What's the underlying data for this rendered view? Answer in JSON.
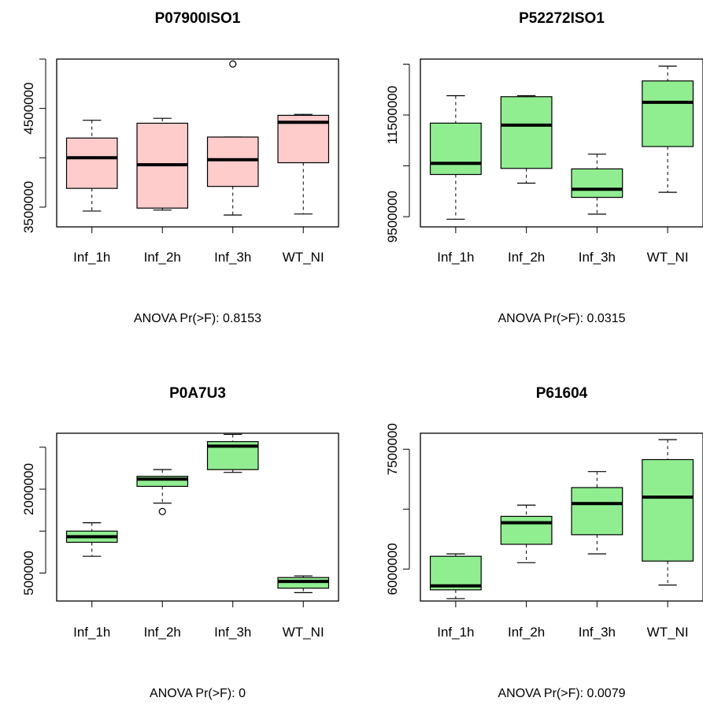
{
  "chart_data": [
    {
      "type": "box",
      "title": "P07900ISO1",
      "categories": [
        "Inf_1h",
        "Inf_2h",
        "Inf_3h",
        "WT_NI"
      ],
      "yticks": [
        3500000,
        4500000
      ],
      "ylim": [
        3300000,
        5000000
      ],
      "fill": "#ffcccc",
      "boxes": [
        {
          "min": 3460000,
          "q1": 3690000,
          "median": 4000000,
          "q3": 4200000,
          "max": 4380000
        },
        {
          "min": 3470000,
          "q1": 3490000,
          "median": 3930000,
          "q3": 4350000,
          "max": 4400000
        },
        {
          "min": 3420000,
          "q1": 3710000,
          "median": 3980000,
          "q3": 4210000,
          "max": 4210000
        },
        {
          "min": 3430000,
          "q1": 3950000,
          "median": 4360000,
          "q3": 4430000,
          "max": 4440000
        }
      ],
      "outliers": [
        {
          "category": "Inf_3h",
          "value": 4950000
        }
      ],
      "anova": "ANOVA Pr(>F): 0.8153"
    },
    {
      "type": "box",
      "title": "P52272ISO1",
      "categories": [
        "Inf_1h",
        "Inf_2h",
        "Inf_3h",
        "WT_NI"
      ],
      "yticks": [
        9500000,
        11500000
      ],
      "ylim": [
        9300000,
        12600000
      ],
      "fill": "#90ee90",
      "boxes": [
        {
          "min": 9450000,
          "q1": 10330000,
          "median": 10550000,
          "q3": 11340000,
          "max": 11880000
        },
        {
          "min": 10160000,
          "q1": 10450000,
          "median": 11300000,
          "q3": 11860000,
          "max": 11880000
        },
        {
          "min": 9550000,
          "q1": 9880000,
          "median": 10040000,
          "q3": 10440000,
          "max": 10730000
        },
        {
          "min": 9980000,
          "q1": 10880000,
          "median": 11750000,
          "q3": 12170000,
          "max": 12460000
        }
      ],
      "outliers": [],
      "anova": "ANOVA Pr(>F): 0.0315"
    },
    {
      "type": "box",
      "title": "P0A7U3",
      "categories": [
        "Inf_1h",
        "Inf_2h",
        "Inf_3h",
        "WT_NI"
      ],
      "yticks": [
        500000,
        2000000
      ],
      "ylim": [
        0,
        3000000
      ],
      "fill": "#90ee90",
      "boxes": [
        {
          "min": 800000,
          "q1": 1050000,
          "median": 1150000,
          "q3": 1250000,
          "max": 1400000
        },
        {
          "min": 1750000,
          "q1": 2050000,
          "median": 2180000,
          "q3": 2230000,
          "max": 2350000
        },
        {
          "min": 2300000,
          "q1": 2350000,
          "median": 2770000,
          "q3": 2850000,
          "max": 2980000
        },
        {
          "min": 150000,
          "q1": 230000,
          "median": 350000,
          "q3": 420000,
          "max": 450000
        }
      ],
      "outliers": [
        {
          "category": "Inf_2h",
          "value": 1600000
        }
      ],
      "anova": "ANOVA Pr(>F): 0"
    },
    {
      "type": "box",
      "title": "P61604",
      "categories": [
        "Inf_1h",
        "Inf_2h",
        "Inf_3h",
        "WT_NI"
      ],
      "yticks": [
        6000000,
        7500000
      ],
      "ylim": [
        5600000,
        7700000
      ],
      "fill": "#90ee90",
      "boxes": [
        {
          "min": 5630000,
          "q1": 5740000,
          "median": 5790000,
          "q3": 6160000,
          "max": 6190000
        },
        {
          "min": 6080000,
          "q1": 6310000,
          "median": 6580000,
          "q3": 6660000,
          "max": 6800000
        },
        {
          "min": 6190000,
          "q1": 6430000,
          "median": 6820000,
          "q3": 7020000,
          "max": 7220000
        },
        {
          "min": 5800000,
          "q1": 6100000,
          "median": 6900000,
          "q3": 7370000,
          "max": 7620000
        }
      ],
      "outliers": [],
      "anova": "ANOVA Pr(>F): 0.0079"
    }
  ]
}
